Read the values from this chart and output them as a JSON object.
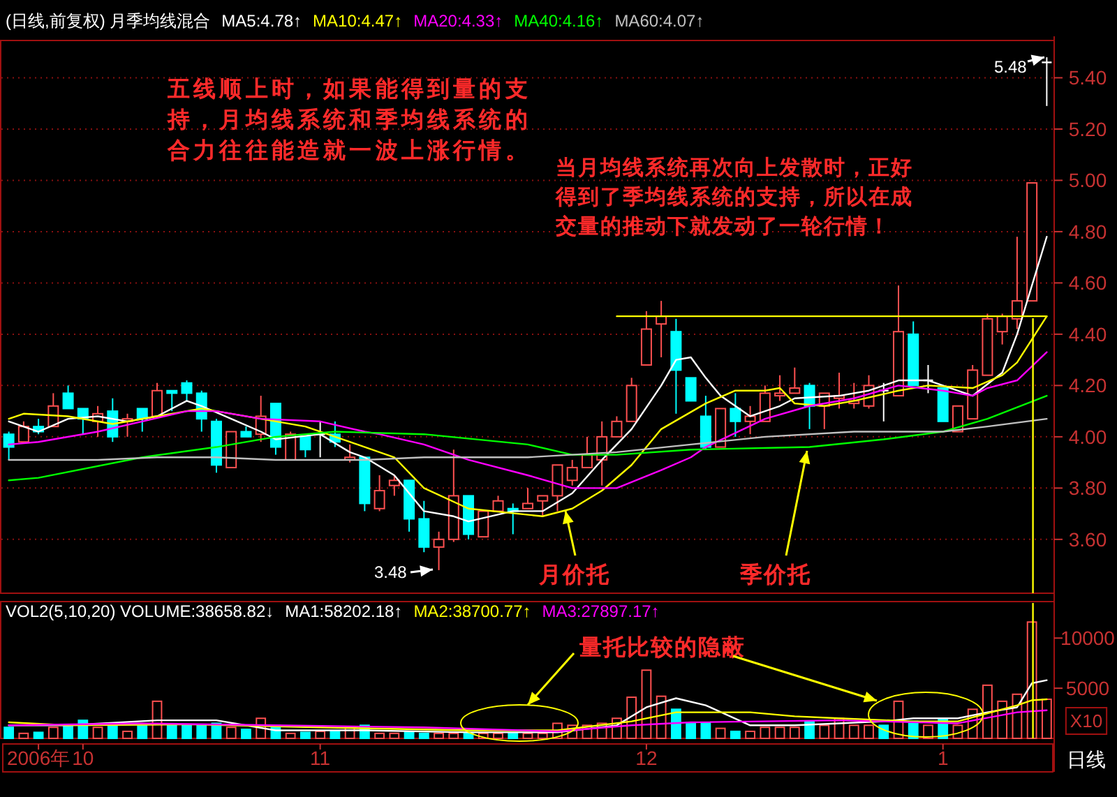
{
  "chart_data": [
    {
      "type": "candlestick",
      "title": "(日线,前复权) 月季均线混合",
      "categories": [
        null,
        null,
        null,
        null,
        null,
        null,
        null,
        null,
        null,
        null,
        null,
        null,
        null,
        null,
        null,
        null,
        null,
        null,
        null,
        null,
        null,
        null,
        null,
        null,
        null,
        null,
        null,
        null,
        null,
        null,
        null,
        null,
        null,
        null,
        null,
        null,
        null,
        null,
        null,
        null,
        null,
        null,
        null,
        null,
        null,
        null,
        null,
        null,
        null,
        null,
        null,
        null,
        null,
        null,
        null,
        null,
        null,
        null,
        null,
        null,
        null,
        null,
        null,
        null,
        null,
        null,
        null,
        null,
        null,
        null,
        null
      ],
      "ohlc": [
        [
          4.01,
          4.02,
          3.91,
          3.96
        ],
        [
          3.98,
          4.06,
          3.98,
          4.04
        ],
        [
          4.04,
          4.07,
          4.01,
          4.02
        ],
        [
          4.04,
          4.17,
          4.04,
          4.12
        ],
        [
          4.17,
          4.2,
          4.11,
          4.11
        ],
        [
          4.11,
          4.11,
          4.01,
          4.07
        ],
        [
          4.06,
          4.12,
          4.0,
          4.09
        ],
        [
          4.1,
          4.15,
          3.98,
          4.0
        ],
        [
          4.06,
          4.09,
          4.0,
          4.07
        ],
        [
          4.11,
          4.11,
          4.02,
          4.07
        ],
        [
          4.08,
          4.21,
          4.08,
          4.18
        ],
        [
          4.18,
          4.18,
          4.1,
          4.17
        ],
        [
          4.21,
          4.22,
          4.14,
          4.17
        ],
        [
          4.17,
          4.18,
          4.02,
          4.07
        ],
        [
          4.06,
          4.07,
          3.86,
          3.89
        ],
        [
          3.88,
          4.02,
          3.88,
          4.02
        ],
        [
          4.02,
          4.04,
          4.0,
          4.0
        ],
        [
          4.01,
          4.16,
          3.98,
          4.08
        ],
        [
          4.13,
          4.13,
          3.93,
          3.96
        ],
        [
          3.91,
          4.02,
          3.91,
          4.01
        ],
        [
          4.0,
          4.0,
          3.92,
          3.95
        ],
        [
          4.01,
          4.06,
          3.92,
          4.01
        ],
        [
          4.01,
          4.06,
          3.96,
          3.98
        ],
        [
          3.91,
          3.97,
          3.9,
          3.92
        ],
        [
          3.92,
          3.92,
          3.71,
          3.74
        ],
        [
          3.72,
          3.85,
          3.71,
          3.79
        ],
        [
          3.81,
          3.85,
          3.77,
          3.83
        ],
        [
          3.83,
          3.83,
          3.63,
          3.68
        ],
        [
          3.68,
          3.75,
          3.55,
          3.57
        ],
        [
          3.57,
          3.63,
          3.48,
          3.6
        ],
        [
          3.6,
          3.95,
          3.59,
          3.77
        ],
        [
          3.77,
          3.77,
          3.6,
          3.62
        ],
        [
          3.61,
          3.71,
          3.61,
          3.71
        ],
        [
          3.71,
          3.77,
          3.71,
          3.75
        ],
        [
          3.72,
          3.74,
          3.62,
          3.71
        ],
        [
          3.72,
          3.8,
          3.72,
          3.74
        ],
        [
          3.75,
          3.77,
          3.69,
          3.77
        ],
        [
          3.77,
          3.89,
          3.71,
          3.89
        ],
        [
          3.83,
          3.91,
          3.81,
          3.88
        ],
        [
          3.88,
          4.0,
          3.88,
          3.93
        ],
        [
          3.91,
          4.06,
          3.81,
          4.0
        ],
        [
          4.0,
          4.08,
          4.0,
          4.06
        ],
        [
          4.06,
          4.23,
          4.06,
          4.2
        ],
        [
          4.28,
          4.49,
          4.28,
          4.42
        ],
        [
          4.44,
          4.53,
          4.31,
          4.47
        ],
        [
          4.41,
          4.46,
          4.09,
          4.26
        ],
        [
          4.23,
          4.23,
          4.14,
          4.14
        ],
        [
          4.08,
          4.16,
          3.95,
          3.96
        ],
        [
          3.96,
          4.11,
          3.96,
          4.11
        ],
        [
          4.11,
          4.17,
          4.0,
          4.06
        ],
        [
          4.06,
          4.12,
          4.01,
          4.08
        ],
        [
          4.06,
          4.2,
          4.06,
          4.17
        ],
        [
          4.16,
          4.24,
          4.14,
          4.17
        ],
        [
          4.17,
          4.27,
          4.17,
          4.19
        ],
        [
          4.2,
          4.21,
          4.03,
          4.12
        ],
        [
          4.12,
          4.17,
          4.03,
          4.17
        ],
        [
          4.15,
          4.25,
          4.11,
          4.16
        ],
        [
          4.13,
          4.21,
          4.11,
          4.14
        ],
        [
          4.12,
          4.24,
          4.11,
          4.2
        ],
        [
          4.18,
          4.21,
          4.06,
          4.18
        ],
        [
          4.16,
          4.59,
          4.16,
          4.41
        ],
        [
          4.4,
          4.45,
          4.2,
          4.2
        ],
        [
          4.22,
          4.28,
          4.17,
          4.22
        ],
        [
          4.19,
          4.19,
          4.06,
          4.06
        ],
        [
          4.02,
          4.12,
          4.02,
          4.12
        ],
        [
          4.07,
          4.28,
          4.07,
          4.26
        ],
        [
          4.24,
          4.48,
          4.24,
          4.46
        ],
        [
          4.41,
          4.48,
          4.36,
          4.47
        ],
        [
          4.46,
          4.78,
          4.42,
          4.53
        ],
        [
          4.53,
          4.99,
          4.53,
          4.99
        ],
        [
          5.46,
          5.48,
          5.29,
          5.46
        ]
      ],
      "colors": [
        "#00ffff",
        "#ff5050",
        "#00ffff",
        "#ff5050",
        "#00ffff",
        "#00ffff",
        "#ff5050",
        "#00ffff",
        "#ff5050",
        "#00ffff",
        "#ff5050",
        "#00ffff",
        "#00ffff",
        "#00ffff",
        "#00ffff",
        "#ff5050",
        "#00ffff",
        "#ff5050",
        "#00ffff",
        "#ff5050",
        "#00ffff",
        "#ffffff",
        "#00ffff",
        "#ff5050",
        "#00ffff",
        "#ff5050",
        "#ff5050",
        "#00ffff",
        "#00ffff",
        "#ff5050",
        "#ff5050",
        "#00ffff",
        "#ff5050",
        "#ff5050",
        "#00ffff",
        "#ff5050",
        "#ff5050",
        "#ff5050",
        "#ff5050",
        "#ff5050",
        "#ff5050",
        "#ff5050",
        "#ff5050",
        "#ff5050",
        "#ff5050",
        "#00ffff",
        "#00ffff",
        "#00ffff",
        "#ff5050",
        "#00ffff",
        "#ff5050",
        "#ff5050",
        "#ff5050",
        "#ff5050",
        "#00ffff",
        "#ff5050",
        "#ff5050",
        "#ff5050",
        "#ff5050",
        "#ffffff",
        "#ff5050",
        "#00ffff",
        "#ffffff",
        "#00ffff",
        "#ff5050",
        "#ff5050",
        "#ff5050",
        "#ff5050",
        "#ff5050",
        "#ff5050",
        "#ffffff"
      ],
      "ylim": [
        3.39,
        5.54
      ],
      "yticks": [
        {
          "value": 3.6,
          "label": "3.60"
        },
        {
          "value": 3.8,
          "label": "3.80"
        },
        {
          "value": 4.0,
          "label": "4.00"
        },
        {
          "value": 4.2,
          "label": "4.20"
        },
        {
          "value": 4.4,
          "label": "4.40"
        },
        {
          "value": 4.6,
          "label": "4.60"
        },
        {
          "value": 4.8,
          "label": "4.80"
        },
        {
          "value": 5.0,
          "label": "5.00"
        },
        {
          "value": 5.2,
          "label": "5.20"
        },
        {
          "value": 5.4,
          "label": "5.40"
        }
      ],
      "tick_labels": "y",
      "grid": "y",
      "legend": "top left",
      "series": [
        {
          "type": "line",
          "name": "MA5:4.78↑",
          "color": "#ffffff",
          "values": [
            4.06,
            null,
            4.02,
            null,
            4.07,
            null,
            4.08,
            null,
            4.06,
            null,
            4.08,
            null,
            4.14,
            4.12,
            null,
            4.07,
            null,
            4.02,
            3.99,
            null,
            null,
            4.01,
            null,
            3.94,
            3.92,
            null,
            3.85,
            null,
            3.71,
            null,
            3.69,
            3.67,
            null,
            null,
            3.71,
            null,
            3.71,
            null,
            3.78,
            null,
            3.91,
            null,
            4.03,
            null,
            4.2,
            4.3,
            4.31,
            4.23,
            4.16,
            null,
            4.08,
            null,
            4.12,
            4.15,
            null,
            null,
            4.16,
            null,
            4.18,
            null,
            4.22,
            null,
            4.22,
            4.2,
            null,
            4.16,
            null,
            4.25,
            4.4,
            null,
            4.78
          ]
        },
        {
          "type": "line",
          "name": "MA10:4.47↑",
          "color": "#ffff00",
          "values": [
            4.07,
            4.09,
            null,
            null,
            4.08,
            null,
            null,
            4.05,
            null,
            null,
            4.08,
            null,
            null,
            4.11,
            4.1,
            null,
            null,
            4.07,
            null,
            null,
            4.04,
            null,
            null,
            3.98,
            null,
            null,
            3.92,
            null,
            3.8,
            null,
            null,
            3.72,
            null,
            null,
            null,
            null,
            3.69,
            null,
            3.72,
            null,
            3.79,
            null,
            3.89,
            null,
            4.03,
            null,
            null,
            4.13,
            null,
            4.18,
            null,
            4.18,
            4.19,
            4.13,
            null,
            4.12,
            null,
            4.14,
            null,
            null,
            4.18,
            null,
            4.2,
            null,
            null,
            4.19,
            null,
            4.24,
            4.29,
            null,
            4.47
          ]
        },
        {
          "type": "line",
          "name": "MA20:4.33↑",
          "color": "#ff00ff",
          "values": [
            3.97,
            null,
            3.98,
            null,
            null,
            null,
            4.02,
            null,
            null,
            4.06,
            null,
            null,
            4.1,
            null,
            4.1,
            null,
            null,
            4.07,
            null,
            null,
            null,
            4.06,
            null,
            null,
            4.02,
            4.01,
            null,
            null,
            3.97,
            null,
            null,
            3.91,
            null,
            null,
            null,
            3.85,
            null,
            null,
            3.8,
            null,
            null,
            3.8,
            null,
            null,
            3.87,
            null,
            3.92,
            3.96,
            null,
            null,
            null,
            4.07,
            null,
            null,
            4.12,
            null,
            null,
            4.15,
            null,
            null,
            4.2,
            null,
            null,
            4.18,
            null,
            4.16,
            4.19,
            null,
            4.22,
            null,
            4.33
          ]
        },
        {
          "type": "line",
          "name": "MA40:4.16↑",
          "color": "#00ff00",
          "values": [
            3.83,
            null,
            3.84,
            null,
            null,
            null,
            null,
            null,
            null,
            3.92,
            null,
            null,
            null,
            null,
            3.96,
            null,
            null,
            null,
            4.0,
            null,
            null,
            null,
            4.02,
            null,
            null,
            null,
            null,
            null,
            4.01,
            null,
            null,
            null,
            null,
            null,
            null,
            3.97,
            null,
            null,
            3.93,
            null,
            null,
            3.93,
            null,
            null,
            null,
            null,
            3.95,
            null,
            null,
            null,
            null,
            null,
            null,
            null,
            3.96,
            null,
            null,
            null,
            null,
            3.99,
            null,
            null,
            null,
            4.02,
            null,
            null,
            4.07,
            null,
            null,
            null,
            4.16
          ]
        },
        {
          "type": "line",
          "name": "MA60:4.07↑",
          "color": "#c0c0c0",
          "values": [
            3.91,
            null,
            null,
            null,
            null,
            null,
            3.91,
            null,
            null,
            null,
            3.92,
            null,
            null,
            null,
            3.92,
            null,
            null,
            null,
            3.91,
            null,
            null,
            null,
            null,
            null,
            3.91,
            null,
            null,
            null,
            3.92,
            null,
            null,
            null,
            null,
            null,
            null,
            3.92,
            null,
            null,
            null,
            null,
            null,
            3.94,
            null,
            null,
            null,
            null,
            3.97,
            null,
            null,
            null,
            null,
            4.0,
            null,
            null,
            null,
            null,
            null,
            4.02,
            null,
            null,
            null,
            null,
            null,
            4.02,
            null,
            null,
            4.04,
            null,
            null,
            null,
            4.07
          ]
        },
        {
          "type": "line",
          "color": "#ffff00",
          "values": [
            null,
            null,
            null,
            null,
            null,
            null,
            null,
            null,
            null,
            null,
            null,
            null,
            null,
            null,
            null,
            null,
            null,
            null,
            null,
            null,
            null,
            null,
            null,
            null,
            null,
            null,
            null,
            null,
            null,
            null,
            null,
            null,
            null,
            null,
            null,
            null,
            null,
            null,
            null,
            null,
            null,
            4.47,
            4.47,
            4.47,
            4.47,
            4.47,
            4.47,
            4.47,
            4.47,
            4.47,
            4.47,
            4.47,
            4.47,
            4.47,
            4.47,
            4.47,
            4.47,
            4.47,
            4.47,
            4.47,
            4.47,
            4.47,
            4.47,
            4.47,
            4.47,
            4.47,
            4.47,
            4.47,
            4.47,
            4.47,
            4.47
          ]
        }
      ],
      "annotations": [
        "五线顺上时，如果能得到量的支持，月均线系统和季均线系统的合力往往能造就一波上涨行情。",
        "当月均线系统再次向上发散时，正好得到了季均线系统的支持，所以在成交量的推动下就发动了一轮行情！",
        "月价托",
        "季价托",
        "3.48",
        "5.48"
      ]
    },
    {
      "type": "bar",
      "title": "VOL2(5,10,20) VOLUME:38658.82↓",
      "categories": [
        null,
        null,
        "2006年",
        null,
        null,
        "10",
        null,
        null,
        null,
        null,
        null,
        null,
        null,
        null,
        null,
        null,
        null,
        null,
        null,
        null,
        null,
        "11",
        null,
        null,
        null,
        null,
        null,
        null,
        null,
        null,
        null,
        null,
        null,
        null,
        null,
        null,
        null,
        null,
        null,
        null,
        null,
        null,
        null,
        "12",
        null,
        null,
        null,
        null,
        null,
        null,
        null,
        null,
        null,
        null,
        null,
        null,
        null,
        null,
        null,
        null,
        null,
        null,
        null,
        "1",
        null,
        null,
        null,
        null,
        null,
        null,
        null
      ],
      "ylim": [
        0,
        13500
      ],
      "yticks": [
        5000,
        10000
      ],
      "legend": "top left",
      "series": [
        {
          "type": "bar",
          "values": [
            1100,
            500,
            600,
            1100,
            1300,
            1800,
            1100,
            1400,
            700,
            1300,
            3700,
            1300,
            1300,
            1300,
            1500,
            1100,
            900,
            2000,
            1300,
            500,
            600,
            700,
            700,
            1100,
            1300,
            500,
            500,
            600,
            500,
            500,
            500,
            500,
            500,
            500,
            500,
            500,
            500,
            1500,
            1300,
            1300,
            1500,
            2000,
            4100,
            6800,
            4200,
            2900,
            1600,
            1600,
            1000,
            700,
            700,
            1100,
            1100,
            1100,
            1700,
            1300,
            2000,
            1300,
            1300,
            1300,
            3700,
            1700,
            1300,
            2000,
            1300,
            2900,
            5300,
            3700,
            4400,
            11600,
            3900
          ],
          "colors": [
            "#00ffff",
            "#ff5050",
            "#00ffff",
            "#ff5050",
            "#00ffff",
            "#00ffff",
            "#ff5050",
            "#00ffff",
            "#ff5050",
            "#00ffff",
            "#ff5050",
            "#00ffff",
            "#00ffff",
            "#00ffff",
            "#00ffff",
            "#ff5050",
            "#00ffff",
            "#ff5050",
            "#00ffff",
            "#ff5050",
            "#00ffff",
            "#ff5050",
            "#00ffff",
            "#ff5050",
            "#00ffff",
            "#ff5050",
            "#ff5050",
            "#00ffff",
            "#00ffff",
            "#ff5050",
            "#ff5050",
            "#00ffff",
            "#ff5050",
            "#ff5050",
            "#00ffff",
            "#ff5050",
            "#ff5050",
            "#ff5050",
            "#ff5050",
            "#ff5050",
            "#ff5050",
            "#ff5050",
            "#ff5050",
            "#ff5050",
            "#ff5050",
            "#00ffff",
            "#00ffff",
            "#00ffff",
            "#ff5050",
            "#00ffff",
            "#ff5050",
            "#ff5050",
            "#ff5050",
            "#ff5050",
            "#00ffff",
            "#ff5050",
            "#ff5050",
            "#ff5050",
            "#ff5050",
            "#00ffff",
            "#ff5050",
            "#00ffff",
            "#ff5050",
            "#00ffff",
            "#ff5050",
            "#ff5050",
            "#ff5050",
            "#ff5050",
            "#ff5050",
            "#ff5050",
            "#ff5050"
          ]
        },
        {
          "type": "line",
          "name": "MA1:58202.18↑",
          "color": "#ffffff",
          "values": [
            1300,
            null,
            null,
            null,
            1300,
            null,
            null,
            null,
            null,
            null,
            1800,
            null,
            null,
            null,
            1800,
            null,
            null,
            null,
            800,
            null,
            null,
            null,
            null,
            null,
            800,
            null,
            null,
            null,
            null,
            null,
            null,
            600,
            null,
            null,
            null,
            null,
            null,
            600,
            null,
            null,
            null,
            1300,
            null,
            3100,
            null,
            4000,
            null,
            3300,
            null,
            null,
            1300,
            null,
            null,
            1300,
            null,
            null,
            1500,
            null,
            null,
            1700,
            null,
            2000,
            null,
            null,
            2000,
            null,
            2600,
            null,
            3100,
            5500,
            5800
          ]
        },
        {
          "type": "line",
          "name": "MA2:38700.77↑",
          "color": "#ffff00",
          "values": [
            1600,
            null,
            null,
            null,
            1300,
            null,
            null,
            null,
            null,
            null,
            null,
            null,
            1400,
            null,
            null,
            null,
            null,
            null,
            null,
            null,
            null,
            1100,
            null,
            null,
            null,
            null,
            null,
            null,
            null,
            null,
            null,
            800,
            null,
            null,
            null,
            null,
            null,
            800,
            null,
            null,
            null,
            null,
            1700,
            null,
            null,
            2600,
            null,
            null,
            null,
            null,
            2600,
            null,
            null,
            2200,
            null,
            null,
            2000,
            null,
            null,
            null,
            null,
            1700,
            null,
            null,
            1700,
            null,
            null,
            null,
            3300,
            3800,
            3900
          ]
        },
        {
          "type": "line",
          "name": "MA3:27897.17↑",
          "color": "#ff00ff",
          "values": [
            1300,
            null,
            null,
            null,
            null,
            null,
            null,
            null,
            null,
            1500,
            null,
            null,
            null,
            null,
            null,
            null,
            null,
            null,
            1300,
            null,
            null,
            null,
            null,
            null,
            null,
            null,
            null,
            null,
            1100,
            null,
            null,
            null,
            null,
            null,
            null,
            null,
            null,
            700,
            null,
            null,
            null,
            null,
            1300,
            null,
            null,
            null,
            1600,
            null,
            null,
            null,
            null,
            null,
            null,
            null,
            null,
            null,
            1800,
            null,
            null,
            null,
            null,
            null,
            null,
            null,
            1500,
            null,
            null,
            null,
            2600,
            null,
            2800
          ]
        }
      ],
      "annotations": [
        "量托比较的隐蔽",
        "X10",
        "日线"
      ]
    }
  ]
}
